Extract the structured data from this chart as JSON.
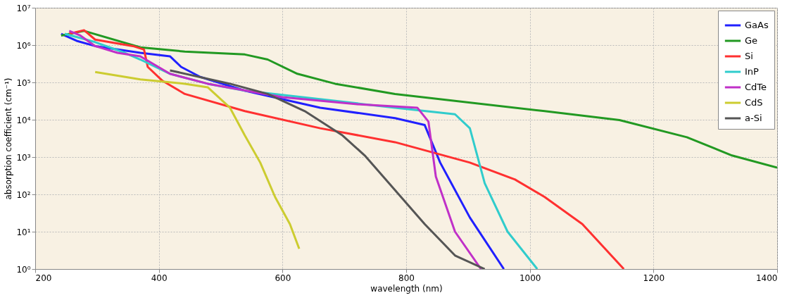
{
  "chart_data": {
    "type": "line",
    "xlabel": "wavelength (nm)",
    "ylabel": "absorption coefficient (cm⁻¹)",
    "log": "y",
    "xlim": [
      200,
      1400
    ],
    "xticks": [
      200,
      400,
      600,
      800,
      1000,
      1200,
      1400
    ],
    "ylim": [
      1,
      10000000
    ],
    "yticks": [
      {
        "value": 1,
        "label": "10⁰"
      },
      {
        "value": 10,
        "label": "10¹"
      },
      {
        "value": 100,
        "label": "10²"
      },
      {
        "value": 1000,
        "label": "10³"
      },
      {
        "value": 10000,
        "label": "10⁴"
      },
      {
        "value": 100000,
        "label": "10⁵"
      },
      {
        "value": 1000000,
        "label": "10⁶"
      },
      {
        "value": 10000000,
        "label": "10⁷"
      }
    ],
    "grid": true,
    "legend": "top right",
    "marker": "none",
    "line_style": "solid",
    "series": [
      {
        "name": "GaAs",
        "color": "#2020ff",
        "x": [
          242,
          267,
          297,
          370,
          418,
          436,
          467,
          539,
          661,
          782,
          830,
          855,
          903,
          958
        ],
        "values": [
          2000000,
          1300000,
          940000,
          620000,
          500000,
          260000,
          140000,
          60000,
          21000,
          11000,
          7200,
          710,
          24,
          1
        ]
      },
      {
        "name": "Ge",
        "color": "#229922",
        "x": [
          242,
          279,
          370,
          442,
          539,
          576,
          624,
          685,
          782,
          1024,
          1145,
          1254,
          1327,
          1400
        ],
        "values": [
          1800000,
          2400000,
          870000,
          670000,
          560000,
          410000,
          170000,
          92000,
          49000,
          17000,
          9800,
          3400,
          1100,
          520
        ]
      },
      {
        "name": "Si",
        "color": "#ff3030",
        "x": [
          255,
          279,
          297,
          358,
          376,
          382,
          406,
          442,
          539,
          661,
          782,
          903,
          976,
          1024,
          1085,
          1152
        ],
        "values": [
          2000000,
          2500000,
          1400000,
          940000,
          760000,
          260000,
          110000,
          49000,
          17000,
          5900,
          2500,
          710,
          250,
          85,
          16,
          1
        ]
      },
      {
        "name": "InP",
        "color": "#30cccc",
        "x": [
          248,
          297,
          345,
          370,
          418,
          479,
          539,
          782,
          879,
          903,
          927,
          964,
          1012
        ],
        "values": [
          2000000,
          1200000,
          620000,
          410000,
          170000,
          92000,
          60000,
          21000,
          14000,
          5900,
          200,
          10,
          1
        ]
      },
      {
        "name": "CdTe",
        "color": "#c030c8",
        "x": [
          255,
          273,
          297,
          333,
          370,
          418,
          479,
          600,
          721,
          818,
          836,
          848,
          879,
          921
        ],
        "values": [
          2400000,
          1800000,
          940000,
          620000,
          500000,
          170000,
          92000,
          40000,
          26000,
          21000,
          8900,
          300,
          10,
          1
        ]
      },
      {
        "name": "CdS",
        "color": "#cccc30",
        "x": [
          297,
          370,
          442,
          479,
          515,
          539,
          564,
          588,
          612,
          627
        ],
        "values": [
          190000,
          120000,
          92000,
          74000,
          21000,
          3800,
          710,
          85,
          16,
          3.5
        ]
      },
      {
        "name": "a-Si",
        "color": "#555555",
        "x": [
          418,
          515,
          576,
          636,
          697,
          733,
          782,
          830,
          879,
          927
        ],
        "values": [
          210000,
          92000,
          49000,
          17000,
          3800,
          1100,
          130,
          16,
          2.3,
          1
        ]
      }
    ]
  }
}
